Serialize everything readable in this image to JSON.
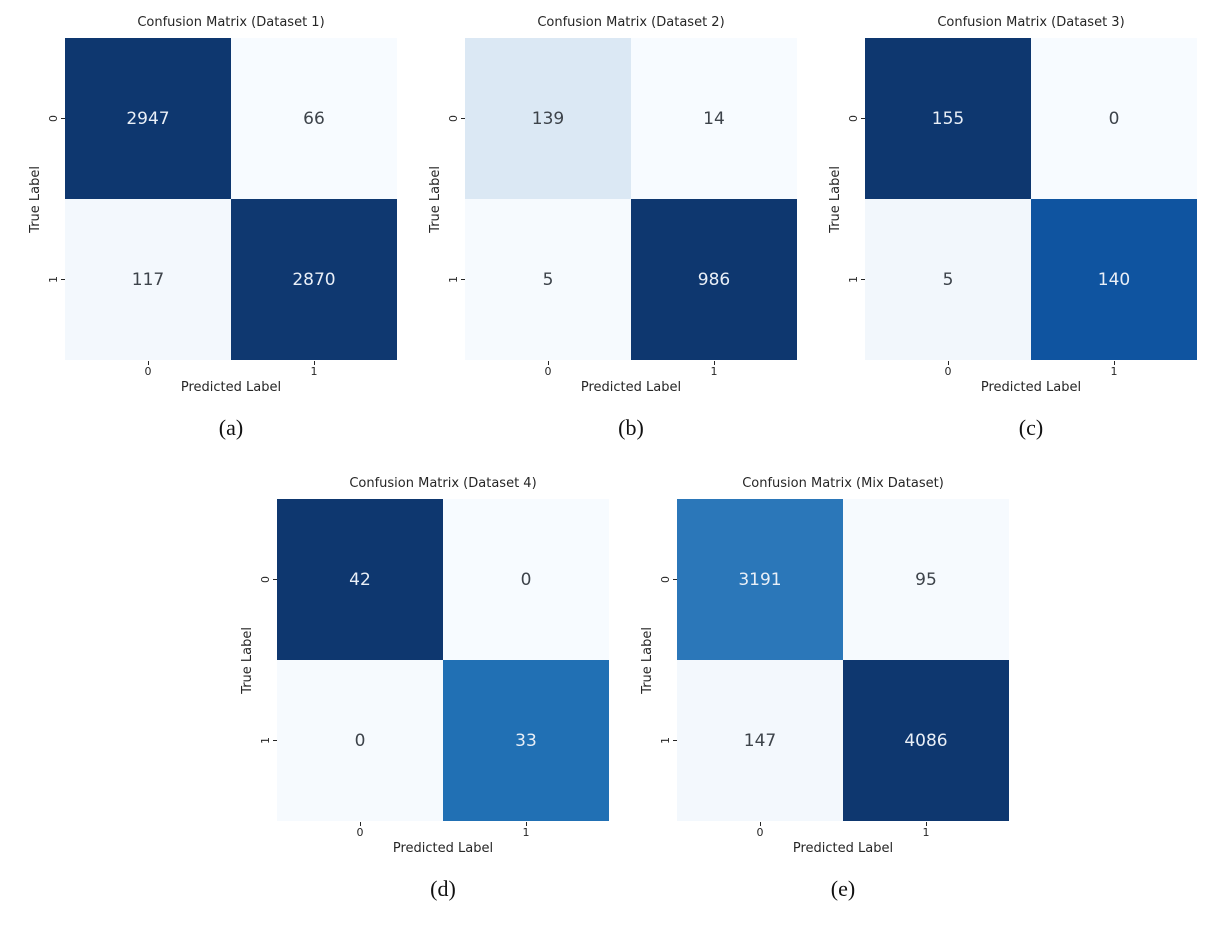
{
  "shared": {
    "xlabel": "Predicted Label",
    "ylabel": "True Label",
    "xticks": [
      "0",
      "1"
    ],
    "yticks": [
      "0",
      "1"
    ]
  },
  "panels": [
    {
      "title": "Confusion Matrix (Dataset 1)",
      "caption": "(a)",
      "cells": [
        {
          "v": "2947",
          "bg": "#0e376f",
          "fg": "#e9eff7"
        },
        {
          "v": "66",
          "bg": "#f7fbff",
          "fg": "#3d434a"
        },
        {
          "v": "117",
          "bg": "#f3f8fd",
          "fg": "#3d434a"
        },
        {
          "v": "2870",
          "bg": "#0f3870",
          "fg": "#e9eff7"
        }
      ]
    },
    {
      "title": "Confusion Matrix (Dataset 2)",
      "caption": "(b)",
      "cells": [
        {
          "v": "139",
          "bg": "#dbe8f4",
          "fg": "#3d434a"
        },
        {
          "v": "14",
          "bg": "#f7fbff",
          "fg": "#3d434a"
        },
        {
          "v": "5",
          "bg": "#f6fafe",
          "fg": "#3d434a"
        },
        {
          "v": "986",
          "bg": "#0e376f",
          "fg": "#e9eff7"
        }
      ]
    },
    {
      "title": "Confusion Matrix (Dataset 3)",
      "caption": "(c)",
      "cells": [
        {
          "v": "155",
          "bg": "#0e376f",
          "fg": "#e9eff7"
        },
        {
          "v": "0",
          "bg": "#f7fbff",
          "fg": "#3d434a"
        },
        {
          "v": "5",
          "bg": "#f2f7fc",
          "fg": "#3d434a"
        },
        {
          "v": "140",
          "bg": "#0f54a0",
          "fg": "#e9eff7"
        }
      ]
    },
    {
      "title": "Confusion Matrix (Dataset 4)",
      "caption": "(d)",
      "cells": [
        {
          "v": "42",
          "bg": "#0e376f",
          "fg": "#e9eff7"
        },
        {
          "v": "0",
          "bg": "#f7fbff",
          "fg": "#3d434a"
        },
        {
          "v": "0",
          "bg": "#f6fafe",
          "fg": "#3d434a"
        },
        {
          "v": "33",
          "bg": "#2170b4",
          "fg": "#e9eff7"
        }
      ]
    },
    {
      "title": "Confusion Matrix (Mix Dataset)",
      "caption": "(e)",
      "cells": [
        {
          "v": "3191",
          "bg": "#2b77b9",
          "fg": "#e9eff7"
        },
        {
          "v": "95",
          "bg": "#f6fafe",
          "fg": "#3d434a"
        },
        {
          "v": "147",
          "bg": "#f3f8fd",
          "fg": "#3d434a"
        },
        {
          "v": "4086",
          "bg": "#0e376f",
          "fg": "#e9eff7"
        }
      ]
    }
  ],
  "chart_data": [
    {
      "type": "heatmap",
      "title": "Confusion Matrix (Dataset 1)",
      "xlabel": "Predicted Label",
      "ylabel": "True Label",
      "x_categories": [
        "0",
        "1"
      ],
      "y_categories": [
        "0",
        "1"
      ],
      "matrix": [
        [
          2947,
          66
        ],
        [
          117,
          2870
        ]
      ],
      "colormap": "Blues",
      "colorbar": false,
      "subfigure_label": "(a)"
    },
    {
      "type": "heatmap",
      "title": "Confusion Matrix (Dataset 2)",
      "xlabel": "Predicted Label",
      "ylabel": "True Label",
      "x_categories": [
        "0",
        "1"
      ],
      "y_categories": [
        "0",
        "1"
      ],
      "matrix": [
        [
          139,
          14
        ],
        [
          5,
          986
        ]
      ],
      "colormap": "Blues",
      "colorbar": false,
      "subfigure_label": "(b)"
    },
    {
      "type": "heatmap",
      "title": "Confusion Matrix (Dataset 3)",
      "xlabel": "Predicted Label",
      "ylabel": "True Label",
      "x_categories": [
        "0",
        "1"
      ],
      "y_categories": [
        "0",
        "1"
      ],
      "matrix": [
        [
          155,
          0
        ],
        [
          5,
          140
        ]
      ],
      "colormap": "Blues",
      "colorbar": false,
      "subfigure_label": "(c)"
    },
    {
      "type": "heatmap",
      "title": "Confusion Matrix (Dataset 4)",
      "xlabel": "Predicted Label",
      "ylabel": "True Label",
      "x_categories": [
        "0",
        "1"
      ],
      "y_categories": [
        "0",
        "1"
      ],
      "matrix": [
        [
          42,
          0
        ],
        [
          0,
          33
        ]
      ],
      "colormap": "Blues",
      "colorbar": false,
      "subfigure_label": "(d)"
    },
    {
      "type": "heatmap",
      "title": "Confusion Matrix (Mix Dataset)",
      "xlabel": "Predicted Label",
      "ylabel": "True Label",
      "x_categories": [
        "0",
        "1"
      ],
      "y_categories": [
        "0",
        "1"
      ],
      "matrix": [
        [
          3191,
          95
        ],
        [
          147,
          4086
        ]
      ],
      "colormap": "Blues",
      "colorbar": false,
      "subfigure_label": "(e)"
    }
  ]
}
